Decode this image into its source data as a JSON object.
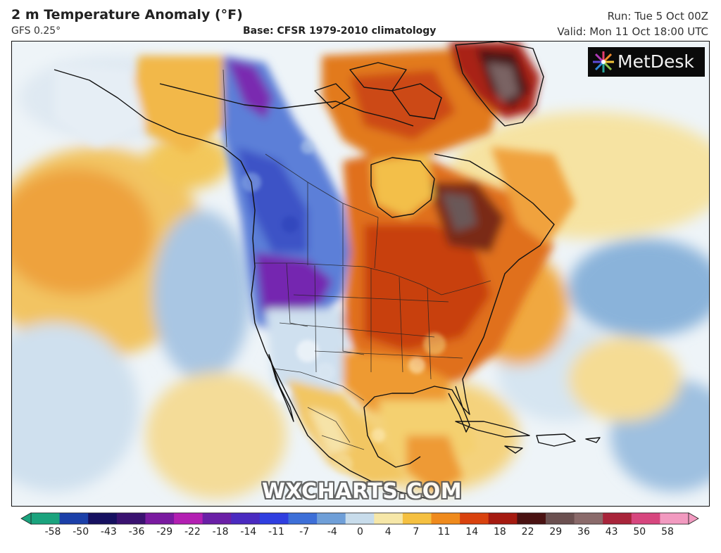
{
  "header": {
    "title": "2 m Temperature Anomaly (°F)",
    "model": "GFS 0.25°",
    "base": "Base: CFSR 1979-2010 climatology",
    "run": "Run: Tue 5 Oct 00Z",
    "valid": "Valid: Mon 11 Oct 18:00 UTC"
  },
  "logo": {
    "text": "MetDesk",
    "icon": "starburst-icon"
  },
  "watermark": "WXCHARTS.COM",
  "colorbar": {
    "ticks": [
      "-58",
      "-50",
      "-43",
      "-36",
      "-29",
      "-22",
      "-18",
      "-14",
      "-11",
      "-7",
      "-4",
      "0",
      "4",
      "7",
      "11",
      "14",
      "18",
      "22",
      "29",
      "36",
      "43",
      "50",
      "58"
    ],
    "colors": [
      "#1aa37d",
      "#1b3fa8",
      "#161060",
      "#3a1270",
      "#7a1aa0",
      "#b31fb2",
      "#6a1fa6",
      "#4a2ac0",
      "#2f3ee0",
      "#3d6fd8",
      "#6f9fd8",
      "#c8dceb",
      "#f6e7a8",
      "#f5c040",
      "#ef8a1c",
      "#d9420e",
      "#a51a10",
      "#4a1212",
      "#6b5050",
      "#8a6a6a",
      "#a8243a",
      "#d7467e",
      "#f29ac0"
    ]
  },
  "map": {
    "region": "North America",
    "palette": {
      "ocean_neutral": "#eef4f8",
      "cool_light": "#bcd3e8",
      "cool_mid": "#7aa6d6",
      "cold": "#3c56c8",
      "very_cold": "#5a1fa6",
      "warm_light": "#f6e1a0",
      "warm": "#f1b444",
      "hot": "#e8801c",
      "very_hot": "#cf3d0e",
      "extreme": "#6e1a12",
      "land_outline": "#111111"
    }
  }
}
